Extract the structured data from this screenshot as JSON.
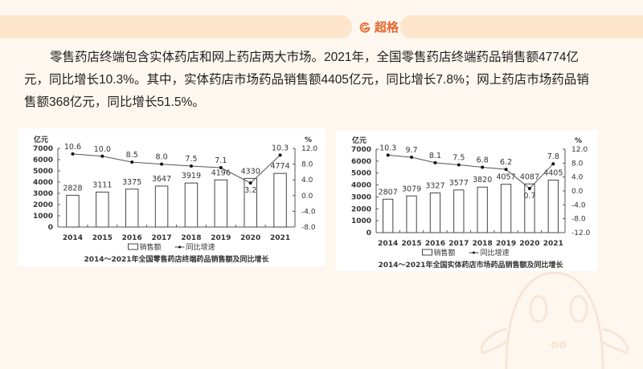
{
  "header": {
    "brand": "超格"
  },
  "paragraph": "零售药店终端包含实体药店和网上药店两大市场。2021年，全国零售药店终端药品销售额4774亿元，同比增长10.3%。其中，实体药店市场药品销售额4405亿元，同比增长7.8%；网上药店市场药品销售额368亿元，同比增长51.5%。",
  "colors": {
    "accent": "#e4652d",
    "topbar": "#fde5cc",
    "background": "#fef7ef"
  },
  "chart_data": [
    {
      "type": "bar+line",
      "title": "2014～2021年全国零售药店终端药品销售额及同比增长",
      "categories": [
        "2014",
        "2015",
        "2016",
        "2017",
        "2018",
        "2019",
        "2020",
        "2021"
      ],
      "series": [
        {
          "name": "销售额",
          "type": "bar",
          "axis": "left",
          "values": [
            2828,
            3111,
            3375,
            3647,
            3919,
            4196,
            4330,
            4774
          ]
        },
        {
          "name": "同比增速",
          "type": "line",
          "axis": "right",
          "values": [
            10.6,
            10.0,
            8.5,
            8.0,
            7.5,
            7.1,
            3.2,
            10.3
          ]
        }
      ],
      "ylabel_left": "亿元",
      "ylabel_right": "%",
      "ylim_left": [
        0,
        7000
      ],
      "yticks_left": [
        "0",
        "1000",
        "2000",
        "3000",
        "4000",
        "5000",
        "6000",
        "7000"
      ],
      "ylim_right": [
        -8.0,
        12.0
      ],
      "yticks_right": [
        "-8.0",
        "-4.0",
        "0.0",
        "4.0",
        "8.0",
        "12.0"
      ],
      "legend": [
        "销售额",
        "同比增速"
      ],
      "legend_position": "bottom",
      "grid": false
    },
    {
      "type": "bar+line",
      "title": "2014～2021年全国实体药店市场药品销售额及同比增长",
      "categories": [
        "2014",
        "2015",
        "2016",
        "2017",
        "2018",
        "2019",
        "2020",
        "2021"
      ],
      "series": [
        {
          "name": "销售额",
          "type": "bar",
          "axis": "left",
          "values": [
            2807,
            3079,
            3327,
            3577,
            3820,
            4057,
            4087,
            4405
          ]
        },
        {
          "name": "同比增速",
          "type": "line",
          "axis": "right",
          "values": [
            10.3,
            9.7,
            8.1,
            7.5,
            6.8,
            6.2,
            0.7,
            7.8
          ]
        }
      ],
      "ylabel_left": "亿元",
      "ylabel_right": "%",
      "ylim_left": [
        0,
        7000
      ],
      "yticks_left": [
        "0",
        "1000",
        "2000",
        "3000",
        "4000",
        "5000",
        "6000",
        "7000"
      ],
      "ylim_right": [
        -12.0,
        12.0
      ],
      "yticks_right": [
        "-12.0",
        "-8.0",
        "-4.0",
        "0.0",
        "4.0",
        "8.0",
        "12.0"
      ],
      "legend": [
        "销售额",
        "同比增速"
      ],
      "legend_position": "bottom",
      "grid": false
    }
  ]
}
